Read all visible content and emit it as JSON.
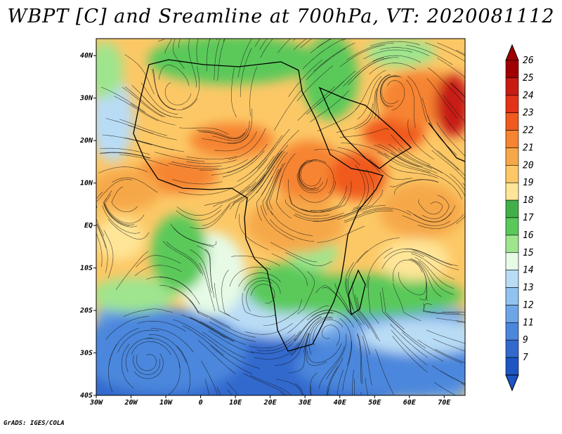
{
  "title": "WBPT [C] and Sreamline at 700hPa, VT: 2020081112",
  "credit": "GrADS: IGES/COLA",
  "map": {
    "lon_labels": [
      "30W",
      "20W",
      "10W",
      "0",
      "10E",
      "20E",
      "30E",
      "40E",
      "50E",
      "60E",
      "70E"
    ],
    "lat_labels": [
      "40N",
      "30N",
      "20N",
      "10N",
      "EQ",
      "10S",
      "20S",
      "30S",
      "40S"
    ],
    "lon_range": [
      -30,
      76
    ],
    "lat_range": [
      -40,
      44
    ]
  },
  "colorbar": {
    "labels": [
      "26",
      "25",
      "24",
      "23",
      "22",
      "21",
      "20",
      "19",
      "18",
      "17",
      "16",
      "15",
      "14",
      "13",
      "12",
      "11",
      "9",
      "7"
    ],
    "colors": [
      "#a00000",
      "#c81c12",
      "#e23218",
      "#f05a1e",
      "#f68430",
      "#f6a848",
      "#fcc866",
      "#fee598",
      "#41b04a",
      "#5ac95a",
      "#9ee58e",
      "#e6fae6",
      "#b9dcf5",
      "#91c3f0",
      "#6ea5e6",
      "#4b87dc",
      "#3369cd",
      "#1e55c3"
    ]
  }
}
